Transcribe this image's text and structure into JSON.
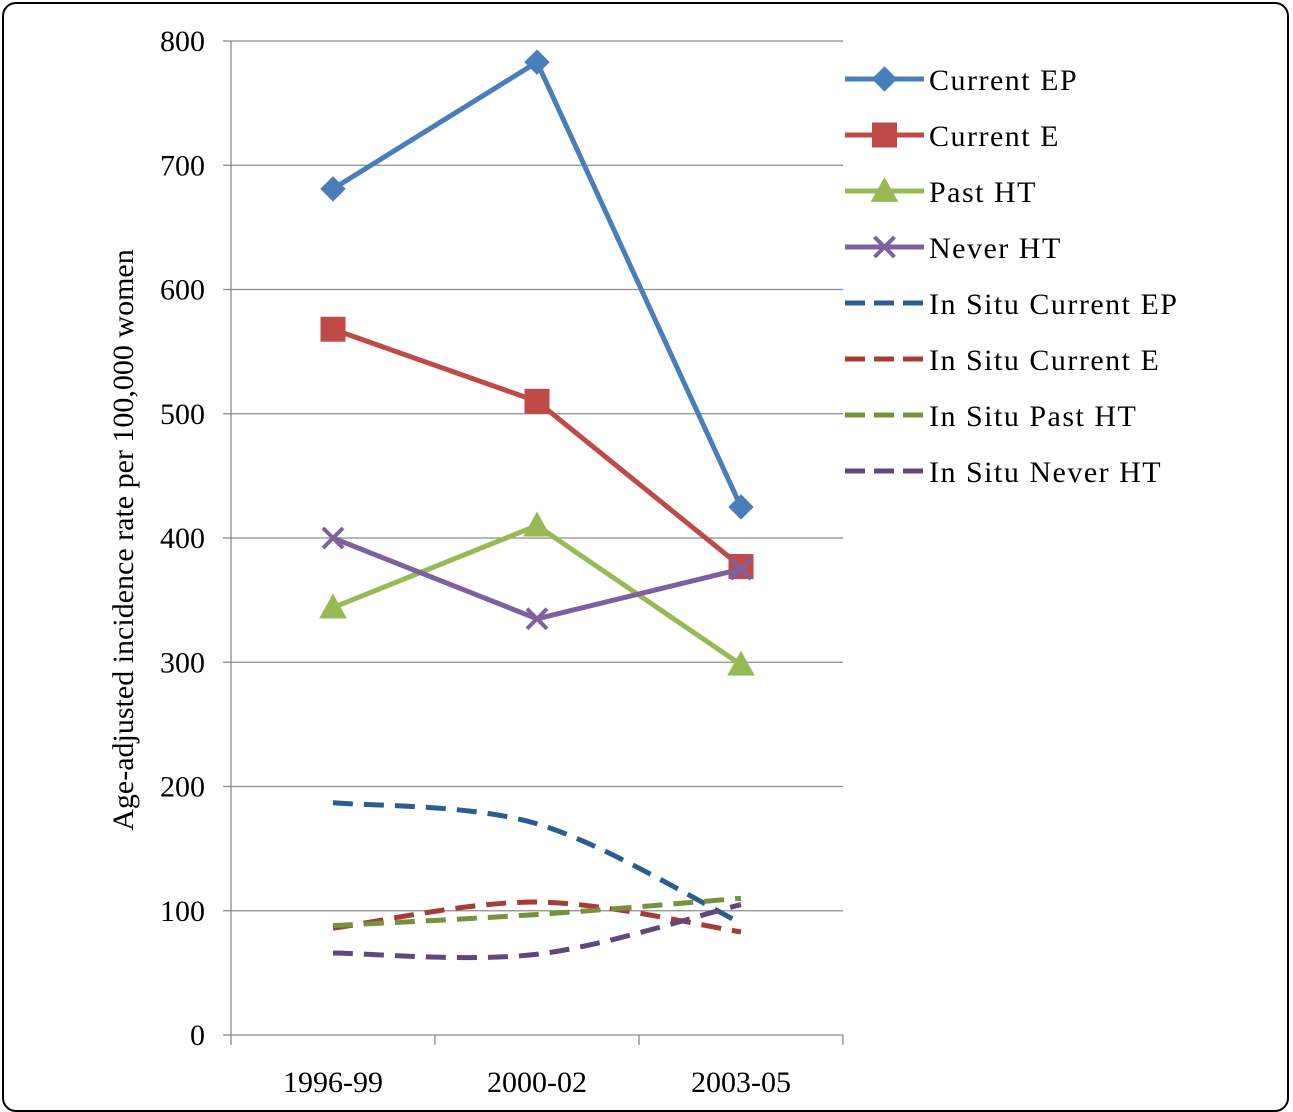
{
  "chart_data": {
    "type": "line",
    "title": "",
    "xlabel": "",
    "ylabel": "Age-adjusted incidence rate per 100,000 women",
    "categories": [
      "1996-99",
      "2000-02",
      "2003-05"
    ],
    "ylim": [
      0,
      800
    ],
    "yticks": [
      0,
      100,
      200,
      300,
      400,
      500,
      600,
      700,
      800
    ],
    "grid": true,
    "legend_position": "right",
    "series": [
      {
        "name": "Current EP",
        "values": [
          681,
          783,
          425
        ],
        "color": "#4a7ebb",
        "style": "solid",
        "marker": "diamond"
      },
      {
        "name": "Current E",
        "values": [
          568,
          510,
          377
        ],
        "color": "#be4b48",
        "style": "solid",
        "marker": "square"
      },
      {
        "name": "Past HT",
        "values": [
          344,
          410,
          298
        ],
        "color": "#98b954",
        "style": "solid",
        "marker": "triangle"
      },
      {
        "name": "Never HT",
        "values": [
          400,
          335,
          375
        ],
        "color": "#7d60a0",
        "style": "solid",
        "marker": "x"
      },
      {
        "name": "In Situ Current EP",
        "values": [
          187,
          170,
          90
        ],
        "color": "#2c5d8f",
        "style": "dashed",
        "marker": "none"
      },
      {
        "name": "In Situ Current E",
        "values": [
          86,
          107,
          83
        ],
        "color": "#a53c38",
        "style": "dashed",
        "marker": "none"
      },
      {
        "name": "In Situ Past HT",
        "values": [
          88,
          97,
          110
        ],
        "color": "#76923c",
        "style": "dashed",
        "marker": "none"
      },
      {
        "name": "In Situ Never HT",
        "values": [
          66,
          65,
          105
        ],
        "color": "#5f497a",
        "style": "dashed",
        "marker": "none"
      }
    ]
  }
}
